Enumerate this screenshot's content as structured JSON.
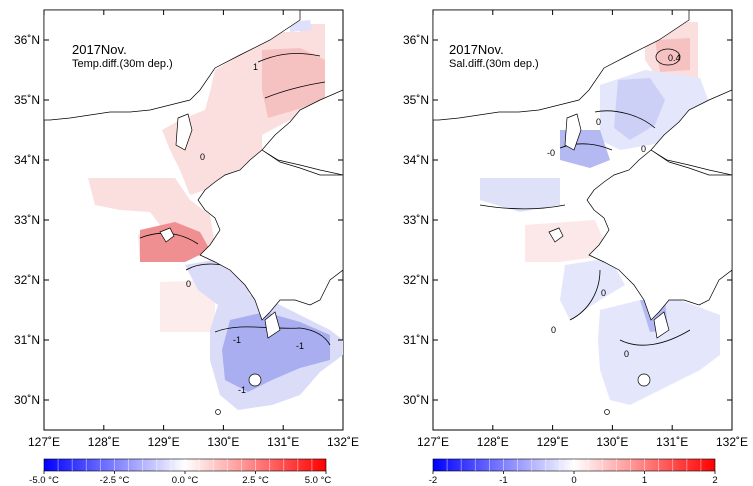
{
  "panels": {
    "left": {
      "title": "2017Nov.",
      "subtitle": "Temp.diff.(30m dep.)",
      "contour_labels": [
        "1",
        "0",
        "0",
        "-1",
        "-1",
        "-1"
      ],
      "colorbar": {
        "labels": [
          "-5.0 °C",
          "-2.5 °C",
          "0.0 °C",
          "2.5 °C",
          "5.0 °C"
        ],
        "range": [
          -5.0,
          5.0
        ]
      }
    },
    "right": {
      "title": "2017Nov.",
      "subtitle": "Sal.diff.(30m dep.)",
      "contour_labels": [
        "0.4",
        "0",
        "-0",
        "0",
        "0",
        "0",
        "0"
      ],
      "colorbar": {
        "labels": [
          "-2",
          "-1",
          "0",
          "1",
          "2"
        ],
        "range": [
          -2,
          2
        ]
      }
    }
  },
  "axes": {
    "x_ticks": [
      "127˚E",
      "128˚E",
      "129˚E",
      "130˚E",
      "131˚E",
      "132˚E"
    ],
    "y_ticks": [
      "36˚N",
      "35˚N",
      "34˚N",
      "33˚N",
      "32˚N",
      "31˚N",
      "30˚N"
    ],
    "lon_range": [
      127,
      132
    ],
    "lat_range": [
      29.5,
      36.5
    ]
  },
  "colors": {
    "positive": "#e8474c",
    "negative": "#3a3ae6",
    "land_outline": "#000000"
  }
}
